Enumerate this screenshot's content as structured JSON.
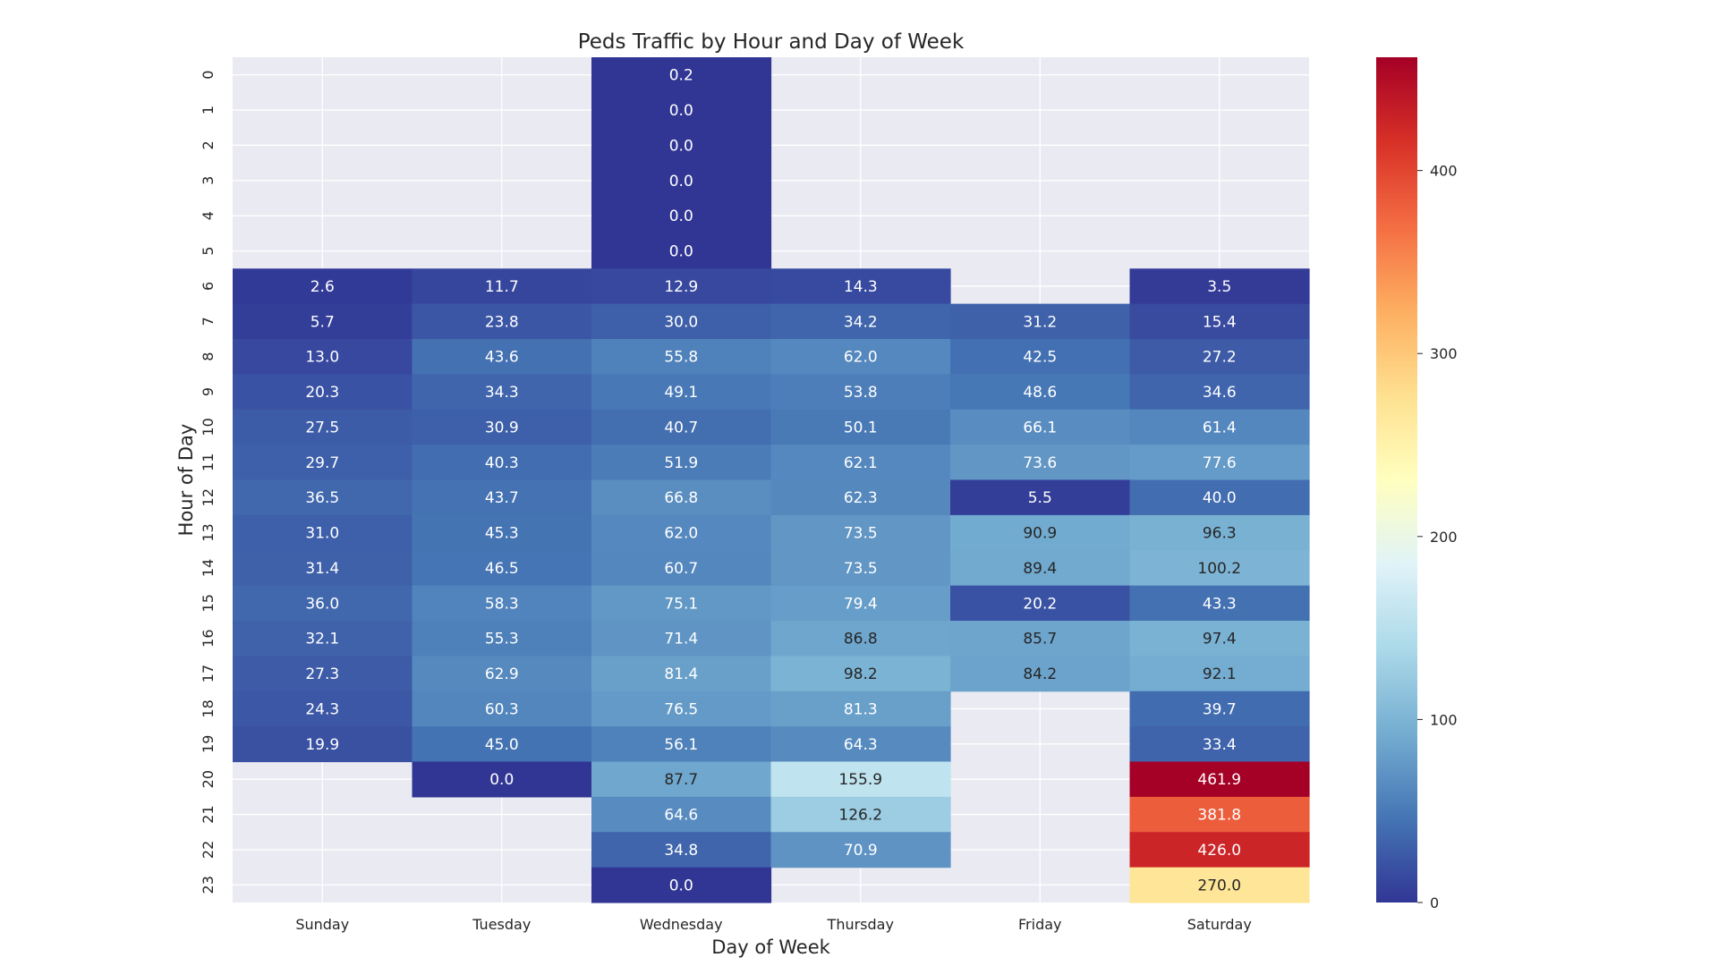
{
  "chart_data": {
    "type": "heatmap",
    "title": "Peds Traffic by Hour and Day of Week",
    "xlabel": "Day of Week",
    "ylabel": "Hour of Day",
    "x_categories": [
      "Sunday",
      "Tuesday",
      "Wednesday",
      "Thursday",
      "Friday",
      "Saturday"
    ],
    "y_categories": [
      "0",
      "1",
      "2",
      "3",
      "4",
      "5",
      "6",
      "7",
      "8",
      "9",
      "10",
      "11",
      "12",
      "13",
      "14",
      "15",
      "16",
      "17",
      "18",
      "19",
      "20",
      "21",
      "22",
      "23"
    ],
    "values": [
      [
        null,
        null,
        0.2,
        null,
        null,
        null
      ],
      [
        null,
        null,
        0.0,
        null,
        null,
        null
      ],
      [
        null,
        null,
        0.0,
        null,
        null,
        null
      ],
      [
        null,
        null,
        0.0,
        null,
        null,
        null
      ],
      [
        null,
        null,
        0.0,
        null,
        null,
        null
      ],
      [
        null,
        null,
        0.0,
        null,
        null,
        null
      ],
      [
        2.6,
        11.7,
        12.9,
        14.3,
        null,
        3.5
      ],
      [
        5.7,
        23.8,
        30.0,
        34.2,
        31.2,
        15.4
      ],
      [
        13.0,
        43.6,
        55.8,
        62.0,
        42.5,
        27.2
      ],
      [
        20.3,
        34.3,
        49.1,
        53.8,
        48.6,
        34.6
      ],
      [
        27.5,
        30.9,
        40.7,
        50.1,
        66.1,
        61.4
      ],
      [
        29.7,
        40.3,
        51.9,
        62.1,
        73.6,
        77.6
      ],
      [
        36.5,
        43.7,
        66.8,
        62.3,
        5.5,
        40.0
      ],
      [
        31.0,
        45.3,
        62.0,
        73.5,
        90.9,
        96.3
      ],
      [
        31.4,
        46.5,
        60.7,
        73.5,
        89.4,
        100.2
      ],
      [
        36.0,
        58.3,
        75.1,
        79.4,
        20.2,
        43.3
      ],
      [
        32.1,
        55.3,
        71.4,
        86.8,
        85.7,
        97.4
      ],
      [
        27.3,
        62.9,
        81.4,
        98.2,
        84.2,
        92.1
      ],
      [
        24.3,
        60.3,
        76.5,
        81.3,
        null,
        39.7
      ],
      [
        19.9,
        45.0,
        56.1,
        64.3,
        null,
        33.4
      ],
      [
        null,
        0.0,
        87.7,
        155.9,
        null,
        461.9
      ],
      [
        null,
        null,
        64.6,
        126.2,
        null,
        381.8
      ],
      [
        null,
        null,
        34.8,
        70.9,
        null,
        426.0
      ],
      [
        null,
        null,
        0.0,
        null,
        null,
        270.0
      ]
    ],
    "colormap": "RdYlBu_r",
    "vmin": 0,
    "vmax": 461.9,
    "colorbar_ticks": [
      0,
      100,
      200,
      300,
      400
    ],
    "grid": true,
    "value_format": "0.1f"
  }
}
